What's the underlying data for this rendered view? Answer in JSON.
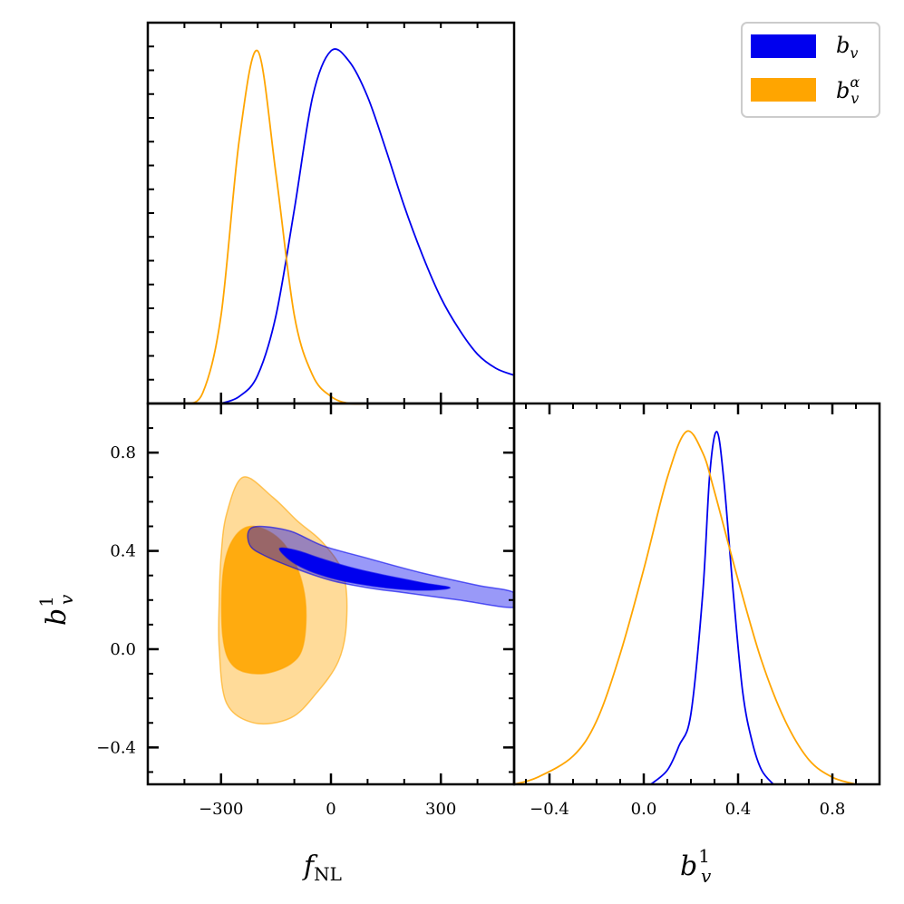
{
  "chart_data": [
    {
      "panel": "fNL-marginal",
      "type": "line",
      "xlabel": "",
      "ylabel": "",
      "xlim": [
        -500,
        500
      ],
      "ylim": [
        0,
        1.08
      ],
      "x_ticks": [
        -300,
        0,
        300
      ],
      "series": [
        {
          "name": "b_v",
          "color": "#0000ee",
          "x": [
            -300,
            -250,
            -200,
            -150,
            -100,
            -50,
            0,
            50,
            100,
            150,
            200,
            250,
            300,
            350,
            400,
            450,
            500
          ],
          "y": [
            0.0,
            0.02,
            0.08,
            0.25,
            0.55,
            0.87,
            1.0,
            0.97,
            0.87,
            0.72,
            0.56,
            0.42,
            0.3,
            0.21,
            0.14,
            0.1,
            0.08
          ]
        },
        {
          "name": "b_v^alpha",
          "color": "#ffa500",
          "x": [
            -400,
            -350,
            -300,
            -250,
            -200,
            -150,
            -100,
            -50,
            0,
            50,
            100
          ],
          "y": [
            0.0,
            0.03,
            0.25,
            0.75,
            1.0,
            0.65,
            0.25,
            0.08,
            0.02,
            0.0,
            0.0
          ]
        }
      ]
    },
    {
      "panel": "b1v-vs-fNL",
      "type": "scatter",
      "xlabel": "f_NL",
      "ylabel": "b_v^1",
      "xlim": [
        -500,
        500
      ],
      "ylim": [
        -0.55,
        1.0
      ],
      "x_ticks": [
        -300,
        0,
        300
      ],
      "y_ticks": [
        -0.4,
        0.0,
        0.4,
        0.8
      ],
      "x_tick_labels": [
        "−300",
        "0",
        "300"
      ],
      "y_tick_labels": [
        "−0.4",
        "0.0",
        "0.4",
        "0.8"
      ],
      "contours": [
        {
          "name": "b_v^alpha 95%",
          "color": "#ffa500",
          "opacity": 0.4,
          "points": [
            [
              -300,
              0.38
            ],
            [
              -285,
              0.55
            ],
            [
              -240,
              0.7
            ],
            [
              -160,
              0.62
            ],
            [
              -90,
              0.52
            ],
            [
              -20,
              0.43
            ],
            [
              35,
              0.3
            ],
            [
              42,
              0.1
            ],
            [
              20,
              -0.05
            ],
            [
              -40,
              -0.18
            ],
            [
              -110,
              -0.28
            ],
            [
              -210,
              -0.3
            ],
            [
              -285,
              -0.22
            ],
            [
              -305,
              0.0
            ],
            [
              -305,
              0.2
            ]
          ]
        },
        {
          "name": "b_v^alpha 68%",
          "color": "#ffa500",
          "opacity": 0.9,
          "points": [
            [
              -295,
              0.3
            ],
            [
              -270,
              0.44
            ],
            [
              -220,
              0.5
            ],
            [
              -150,
              0.46
            ],
            [
              -100,
              0.36
            ],
            [
              -70,
              0.2
            ],
            [
              -75,
              0.02
            ],
            [
              -110,
              -0.06
            ],
            [
              -190,
              -0.1
            ],
            [
              -265,
              -0.07
            ],
            [
              -295,
              0.05
            ]
          ]
        },
        {
          "name": "b_v 95%",
          "color": "#0000ee",
          "opacity": 0.4,
          "points": [
            [
              -225,
              0.48
            ],
            [
              -195,
              0.5
            ],
            [
              -110,
              0.48
            ],
            [
              -20,
              0.42
            ],
            [
              100,
              0.37
            ],
            [
              250,
              0.31
            ],
            [
              400,
              0.26
            ],
            [
              500,
              0.23
            ],
            [
              500,
              0.17
            ],
            [
              350,
              0.2
            ],
            [
              200,
              0.23
            ],
            [
              100,
              0.25
            ],
            [
              0,
              0.28
            ],
            [
              -100,
              0.33
            ],
            [
              -180,
              0.38
            ],
            [
              -220,
              0.42
            ]
          ]
        },
        {
          "name": "b_v 68%",
          "color": "#0000ee",
          "opacity": 1.0,
          "points": [
            [
              -140,
              0.41
            ],
            [
              -90,
              0.4
            ],
            [
              -30,
              0.37
            ],
            [
              60,
              0.33
            ],
            [
              150,
              0.3
            ],
            [
              250,
              0.27
            ],
            [
              325,
              0.25
            ],
            [
              250,
              0.24
            ],
            [
              150,
              0.25
            ],
            [
              60,
              0.27
            ],
            [
              0,
              0.29
            ],
            [
              -60,
              0.32
            ],
            [
              -110,
              0.36
            ]
          ]
        }
      ]
    },
    {
      "panel": "b1v-marginal",
      "type": "line",
      "xlabel": "b_v^1",
      "ylabel": "",
      "xlim": [
        -0.55,
        1.0
      ],
      "ylim": [
        0,
        1.08
      ],
      "x_ticks": [
        -0.4,
        0.0,
        0.4,
        0.8
      ],
      "x_tick_labels": [
        "−0.4",
        "0.0",
        "0.4",
        "0.8"
      ],
      "series": [
        {
          "name": "b_v",
          "color": "#0000ee",
          "x": [
            0.03,
            0.1,
            0.15,
            0.2,
            0.25,
            0.28,
            0.31,
            0.34,
            0.38,
            0.42,
            0.46,
            0.5,
            0.55
          ],
          "y": [
            0.0,
            0.04,
            0.11,
            0.2,
            0.54,
            0.88,
            1.0,
            0.86,
            0.54,
            0.26,
            0.12,
            0.04,
            0.0
          ]
        },
        {
          "name": "b_v^alpha",
          "color": "#ffa500",
          "x": [
            -0.55,
            -0.45,
            -0.3,
            -0.2,
            -0.1,
            0.0,
            0.1,
            0.18,
            0.25,
            0.3,
            0.4,
            0.5,
            0.6,
            0.7,
            0.8,
            0.9
          ],
          "y": [
            0.0,
            0.02,
            0.08,
            0.18,
            0.37,
            0.61,
            0.87,
            1.0,
            0.94,
            0.83,
            0.58,
            0.35,
            0.18,
            0.07,
            0.02,
            0.0
          ]
        }
      ]
    }
  ],
  "legend": {
    "position": "top-right",
    "entries": [
      {
        "label": "b",
        "sub": "v",
        "sup": "",
        "color": "#0000ee"
      },
      {
        "label": "b",
        "sub": "v",
        "sup": "α",
        "color": "#ffa500"
      }
    ]
  },
  "axis_text": {
    "fnl_base": "f",
    "fnl_sub": "NL",
    "bv_base": "b",
    "bv_sub": "v",
    "bv_sup": "1"
  }
}
